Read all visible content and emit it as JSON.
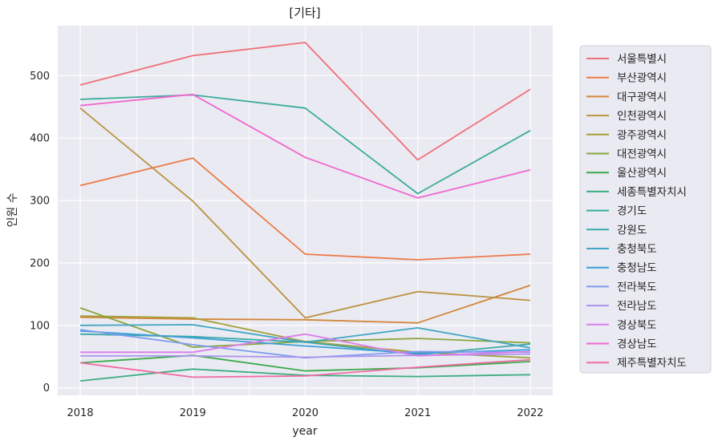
{
  "chart_data": {
    "type": "line",
    "title": "[기타]",
    "xlabel": "year",
    "ylabel": "인원 수",
    "x": [
      2018,
      2019,
      2020,
      2021,
      2022
    ],
    "xlim": [
      2017.8,
      2022.2
    ],
    "ylim": [
      -12,
      580
    ],
    "yticks": [
      0,
      100,
      200,
      300,
      400,
      500
    ],
    "grid": true,
    "legend_position": "right",
    "series": [
      {
        "name": "서울특별시",
        "color": "#f0707a",
        "values": [
          485,
          532,
          553,
          365,
          478
        ]
      },
      {
        "name": "부산광역시",
        "color": "#ec7a49",
        "values": [
          324,
          368,
          214,
          205,
          214
        ]
      },
      {
        "name": "대구광역시",
        "color": "#d3863a",
        "values": [
          113,
          110,
          109,
          104,
          164
        ]
      },
      {
        "name": "인천광역시",
        "color": "#ba9341",
        "values": [
          448,
          299,
          112,
          154,
          140
        ]
      },
      {
        "name": "광주광역시",
        "color": "#a59f3b",
        "values": [
          115,
          112,
          74,
          57,
          48
        ]
      },
      {
        "name": "대전광역시",
        "color": "#87a73d",
        "values": [
          128,
          65,
          74,
          79,
          72
        ]
      },
      {
        "name": "울산광역시",
        "color": "#3aaa4a",
        "values": [
          40,
          52,
          27,
          32,
          42
        ]
      },
      {
        "name": "세종특별자치시",
        "color": "#3aad80",
        "values": [
          11,
          30,
          20,
          18,
          21
        ]
      },
      {
        "name": "경기도",
        "color": "#3aab9b",
        "values": [
          462,
          469,
          448,
          311,
          412
        ]
      },
      {
        "name": "강원도",
        "color": "#3ba8a8",
        "values": [
          86,
          82,
          73,
          53,
          70
        ]
      },
      {
        "name": "충청북도",
        "color": "#3fa5c3",
        "values": [
          100,
          101,
          73,
          96,
          64
        ]
      },
      {
        "name": "충청남도",
        "color": "#3b9ed9",
        "values": [
          91,
          80,
          67,
          55,
          61
        ]
      },
      {
        "name": "전라북도",
        "color": "#7f9cef",
        "values": [
          93,
          69,
          48,
          58,
          57
        ]
      },
      {
        "name": "전라남도",
        "color": "#ab95ee",
        "values": [
          51,
          51,
          49,
          52,
          54
        ]
      },
      {
        "name": "경상북도",
        "color": "#db7ded",
        "values": [
          57,
          57,
          86,
          51,
          58
        ]
      },
      {
        "name": "경상남도",
        "color": "#f067cf",
        "values": [
          452,
          470,
          369,
          304,
          349
        ]
      },
      {
        "name": "제주특별자치도",
        "color": "#f06aa3",
        "values": [
          40,
          17,
          19,
          33,
          45
        ]
      }
    ]
  }
}
